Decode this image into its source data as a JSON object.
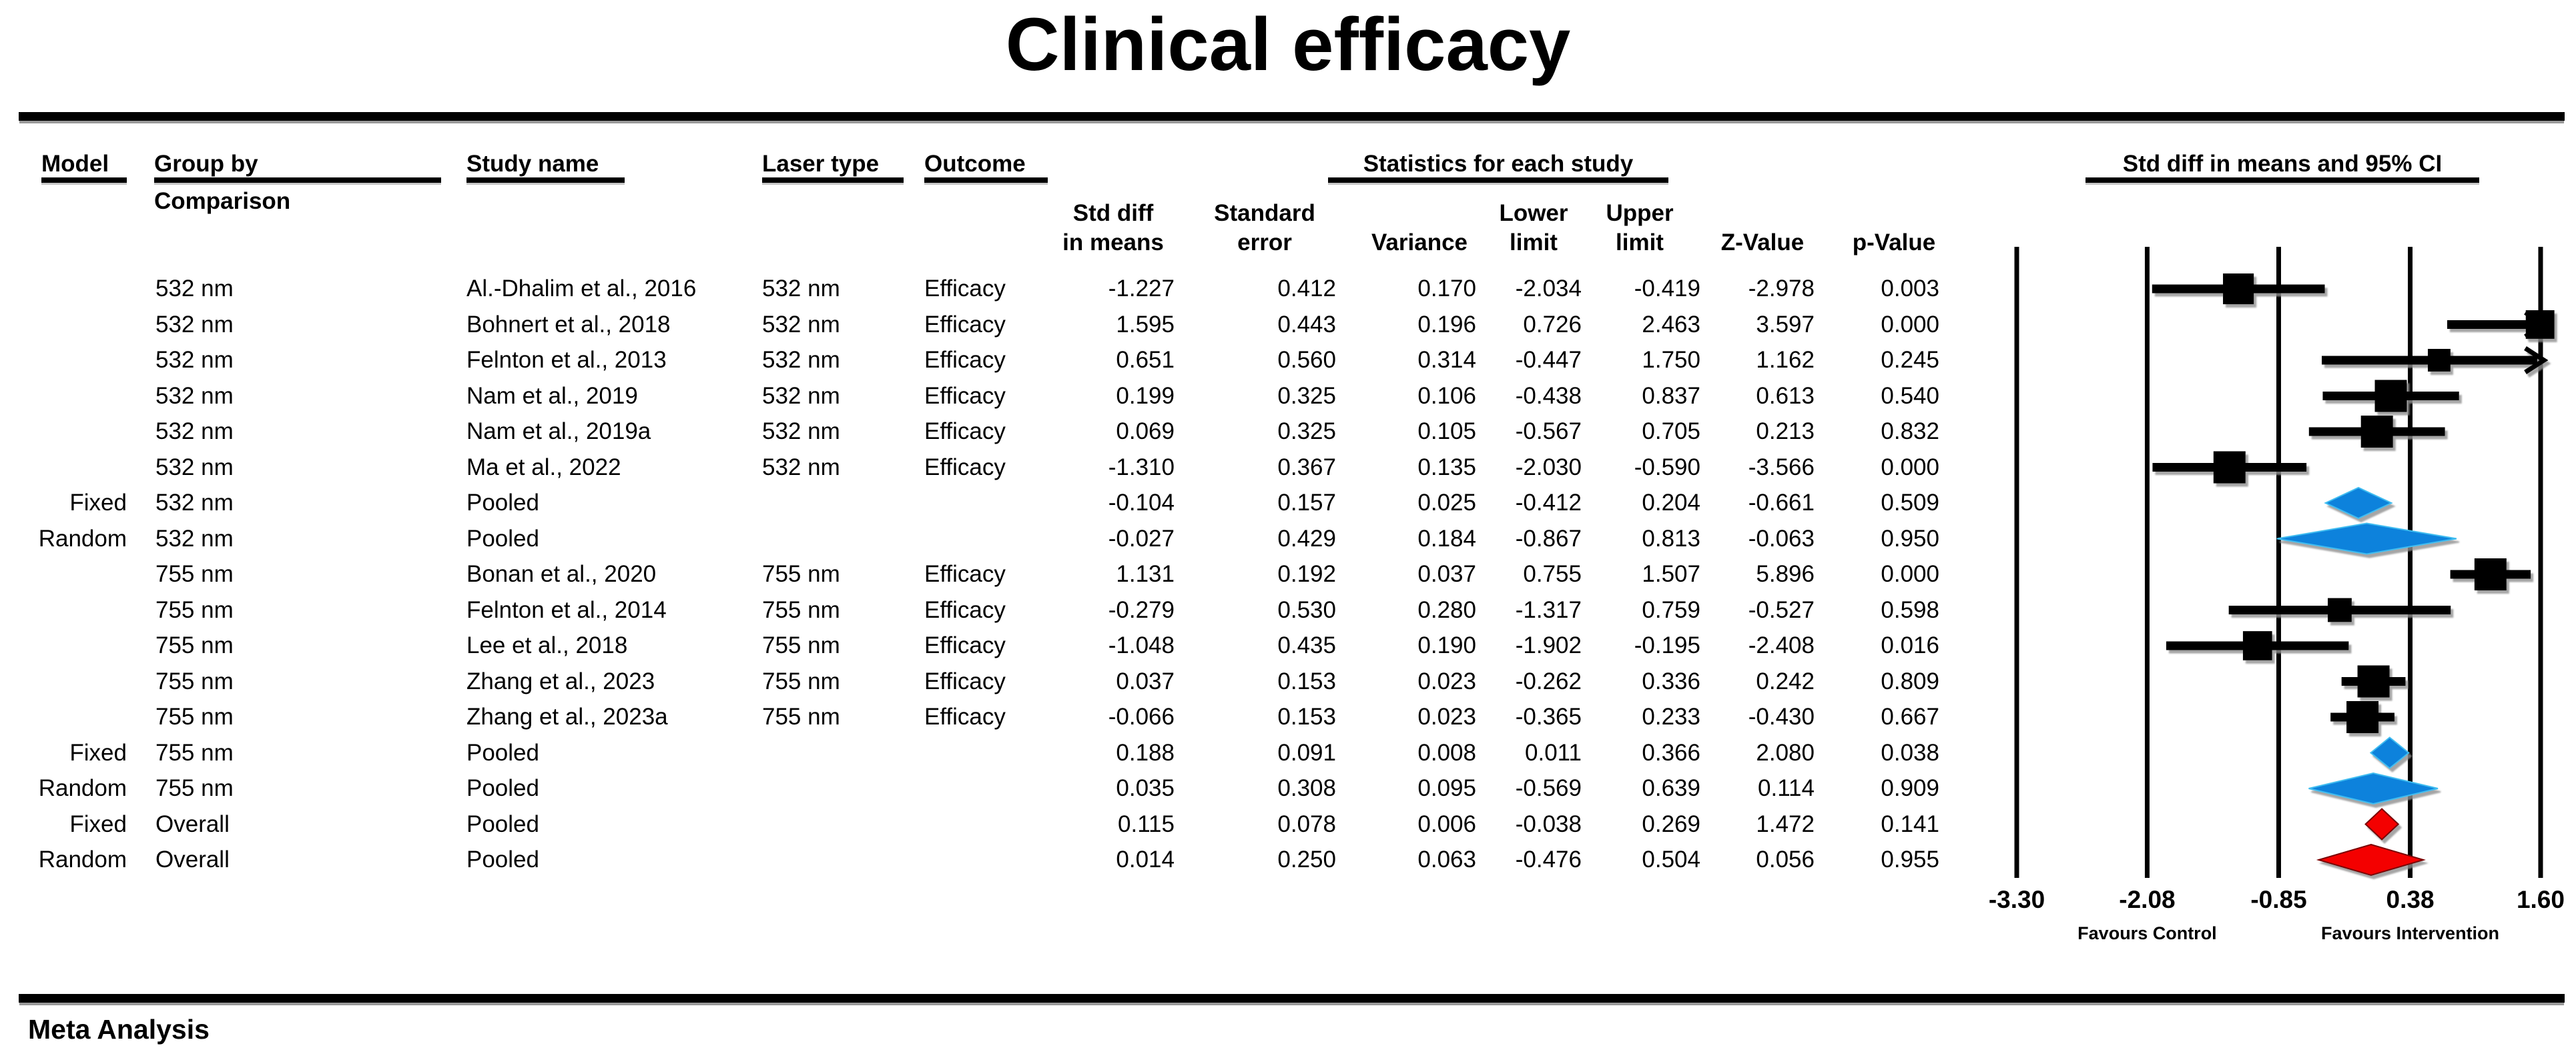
{
  "title": "Clinical efficacy",
  "footer": "Meta Analysis",
  "table": {
    "headers": {
      "model": "Model",
      "group_by_line1": "Group by",
      "group_by_line2": "Comparison",
      "study_name": "Study name",
      "laser_type": "Laser type",
      "outcome": "Outcome",
      "stats_group": "Statistics for each study",
      "plot_group": "Std diff in means and 95% CI",
      "stat_cols": [
        [
          "Std diff",
          "in means"
        ],
        [
          "Standard",
          "error"
        ],
        [
          "",
          "Variance"
        ],
        [
          "Lower",
          "limit"
        ],
        [
          "Upper",
          "limit"
        ],
        [
          "",
          "Z-Value"
        ],
        [
          "",
          "p-Value"
        ]
      ]
    }
  },
  "chart_data": {
    "type": "forest",
    "title": "Clinical efficacy",
    "effect_label": "Std diff in means and 95% CI",
    "x_axis": {
      "min": -3.3,
      "max": 1.6,
      "ticks": [
        -3.3,
        -2.08,
        -0.85,
        0.38,
        1.6
      ],
      "tick_labels": [
        "-3.30",
        "-2.08",
        "-0.85",
        "0.38",
        "1.60"
      ],
      "left_label": "Favours Control",
      "right_label": "Favours Intervention"
    },
    "colors": {
      "study_marker": "#000000",
      "subgroup_diamond": "#0e82dc",
      "overall_diamond": "#f40000"
    },
    "rows": [
      {
        "model": "",
        "group": "532 nm",
        "study": "Al.-Dhalim et al., 2016",
        "laser": "532 nm",
        "outcome": "Efficacy",
        "stats": [
          "-1.227",
          "0.412",
          "0.170",
          "-2.034",
          "-0.419",
          "-2.978",
          "0.003"
        ],
        "marker": "square",
        "color": "#000000"
      },
      {
        "model": "",
        "group": "532 nm",
        "study": "Bohnert et al., 2018",
        "laser": "532 nm",
        "outcome": "Efficacy",
        "stats": [
          "1.595",
          "0.443",
          "0.196",
          "0.726",
          "2.463",
          "3.597",
          "0.000"
        ],
        "marker": "square",
        "color": "#000000"
      },
      {
        "model": "",
        "group": "532 nm",
        "study": "Felnton et al., 2013",
        "laser": "532 nm",
        "outcome": "Efficacy",
        "stats": [
          "0.651",
          "0.560",
          "0.314",
          "-0.447",
          "1.750",
          "1.162",
          "0.245"
        ],
        "marker": "square",
        "color": "#000000"
      },
      {
        "model": "",
        "group": "532 nm",
        "study": "Nam et al., 2019",
        "laser": "532 nm",
        "outcome": "Efficacy",
        "stats": [
          "0.199",
          "0.325",
          "0.106",
          "-0.438",
          "0.837",
          "0.613",
          "0.540"
        ],
        "marker": "square",
        "color": "#000000"
      },
      {
        "model": "",
        "group": "532 nm",
        "study": "Nam et al., 2019a",
        "laser": "532 nm",
        "outcome": "Efficacy",
        "stats": [
          "0.069",
          "0.325",
          "0.105",
          "-0.567",
          "0.705",
          "0.213",
          "0.832"
        ],
        "marker": "square",
        "color": "#000000"
      },
      {
        "model": "",
        "group": "532 nm",
        "study": "Ma et al., 2022",
        "laser": "532 nm",
        "outcome": "Efficacy",
        "stats": [
          "-1.310",
          "0.367",
          "0.135",
          "-2.030",
          "-0.590",
          "-3.566",
          "0.000"
        ],
        "marker": "square",
        "color": "#000000"
      },
      {
        "model": "Fixed",
        "group": "532 nm",
        "study": "Pooled",
        "laser": "",
        "outcome": "",
        "stats": [
          "-0.104",
          "0.157",
          "0.025",
          "-0.412",
          "0.204",
          "-0.661",
          "0.509"
        ],
        "marker": "diamond",
        "color": "#0e82dc"
      },
      {
        "model": "Random",
        "group": "532 nm",
        "study": "Pooled",
        "laser": "",
        "outcome": "",
        "stats": [
          "-0.027",
          "0.429",
          "0.184",
          "-0.867",
          "0.813",
          "-0.063",
          "0.950"
        ],
        "marker": "diamond",
        "color": "#0e82dc"
      },
      {
        "model": "",
        "group": "755 nm",
        "study": "Bonan et al., 2020",
        "laser": "755 nm",
        "outcome": "Efficacy",
        "stats": [
          "1.131",
          "0.192",
          "0.037",
          "0.755",
          "1.507",
          "5.896",
          "0.000"
        ],
        "marker": "square",
        "color": "#000000"
      },
      {
        "model": "",
        "group": "755 nm",
        "study": "Felnton et al., 2014",
        "laser": "755 nm",
        "outcome": "Efficacy",
        "stats": [
          "-0.279",
          "0.530",
          "0.280",
          "-1.317",
          "0.759",
          "-0.527",
          "0.598"
        ],
        "marker": "square",
        "color": "#000000"
      },
      {
        "model": "",
        "group": "755 nm",
        "study": "Lee et al., 2018",
        "laser": "755 nm",
        "outcome": "Efficacy",
        "stats": [
          "-1.048",
          "0.435",
          "0.190",
          "-1.902",
          "-0.195",
          "-2.408",
          "0.016"
        ],
        "marker": "square",
        "color": "#000000"
      },
      {
        "model": "",
        "group": "755 nm",
        "study": "Zhang et al., 2023",
        "laser": "755 nm",
        "outcome": "Efficacy",
        "stats": [
          "0.037",
          "0.153",
          "0.023",
          "-0.262",
          "0.336",
          "0.242",
          "0.809"
        ],
        "marker": "square",
        "color": "#000000"
      },
      {
        "model": "",
        "group": "755 nm",
        "study": "Zhang et al., 2023a",
        "laser": "755 nm",
        "outcome": "Efficacy",
        "stats": [
          "-0.066",
          "0.153",
          "0.023",
          "-0.365",
          "0.233",
          "-0.430",
          "0.667"
        ],
        "marker": "square",
        "color": "#000000"
      },
      {
        "model": "Fixed",
        "group": "755 nm",
        "study": "Pooled",
        "laser": "",
        "outcome": "",
        "stats": [
          "0.188",
          "0.091",
          "0.008",
          "0.011",
          "0.366",
          "2.080",
          "0.038"
        ],
        "marker": "diamond",
        "color": "#0e82dc"
      },
      {
        "model": "Random",
        "group": "755 nm",
        "study": "Pooled",
        "laser": "",
        "outcome": "",
        "stats": [
          "0.035",
          "0.308",
          "0.095",
          "-0.569",
          "0.639",
          "0.114",
          "0.909"
        ],
        "marker": "diamond",
        "color": "#0e82dc"
      },
      {
        "model": "Fixed",
        "group": "Overall",
        "study": "Pooled",
        "laser": "",
        "outcome": "",
        "stats": [
          "0.115",
          "0.078",
          "0.006",
          "-0.038",
          "0.269",
          "1.472",
          "0.141"
        ],
        "marker": "diamond",
        "color": "#f40000"
      },
      {
        "model": "Random",
        "group": "Overall",
        "study": "Pooled",
        "laser": "",
        "outcome": "",
        "stats": [
          "0.014",
          "0.250",
          "0.063",
          "-0.476",
          "0.504",
          "0.056",
          "0.955"
        ],
        "marker": "diamond",
        "color": "#f40000"
      }
    ]
  }
}
